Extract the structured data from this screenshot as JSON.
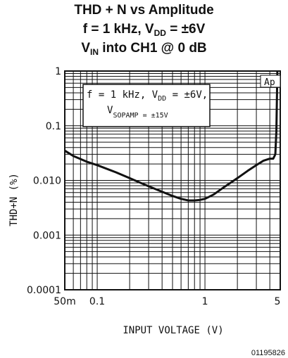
{
  "title": {
    "line1": "THD + N vs Amplitude",
    "line2_prefix": "f = 1 kHz, V",
    "line2_sub": "DD",
    "line2_suffix": " = ±6V",
    "line3_prefix": "V",
    "line3_sub": "IN",
    "line3_suffix": " into CH1 @ 0 dB"
  },
  "chart_data": {
    "type": "line",
    "xscale": "log",
    "yscale": "log",
    "xlim": [
      0.05,
      5
    ],
    "ylim": [
      0.0001,
      1
    ],
    "xlabel": "INPUT VOLTAGE (V)",
    "ylabel": "THD+N (%)",
    "xticks": [
      {
        "value": 0.05,
        "label": "50m"
      },
      {
        "value": 0.1,
        "label": "0.1"
      },
      {
        "value": 1,
        "label": "1"
      },
      {
        "value": 5,
        "label": "5"
      }
    ],
    "yticks": [
      {
        "value": 1,
        "label": "1"
      },
      {
        "value": 0.1,
        "label": "0.1"
      },
      {
        "value": 0.01,
        "label": "0.010"
      },
      {
        "value": 0.001,
        "label": "0.001"
      },
      {
        "value": 0.0001,
        "label": "0.0001"
      }
    ],
    "grid": true,
    "annotation": {
      "line1_prefix": "f = 1 kHz, V",
      "line1_sub": "DD",
      "line1_suffix": " = ±6V,",
      "line2_prefix": "V",
      "line2_sub": "SOPAMP",
      "line2_suffix": " = ±15V"
    },
    "ap_label": "Ap",
    "series": [
      {
        "x": [
          0.05,
          0.06,
          0.08,
          0.1,
          0.15,
          0.2,
          0.3,
          0.4,
          0.5,
          0.6,
          0.7,
          0.8,
          0.9,
          1.0,
          1.2,
          1.5,
          2.0,
          2.5,
          3.0,
          3.5,
          4.0,
          4.3,
          4.5,
          4.6,
          4.7
        ],
        "y": [
          0.035,
          0.028,
          0.022,
          0.019,
          0.014,
          0.011,
          0.0078,
          0.0062,
          0.0052,
          0.0046,
          0.0043,
          0.0043,
          0.0044,
          0.0046,
          0.0055,
          0.0075,
          0.011,
          0.015,
          0.019,
          0.023,
          0.025,
          0.025,
          0.03,
          0.08,
          1.0
        ]
      }
    ]
  },
  "figure_id": "01195826"
}
